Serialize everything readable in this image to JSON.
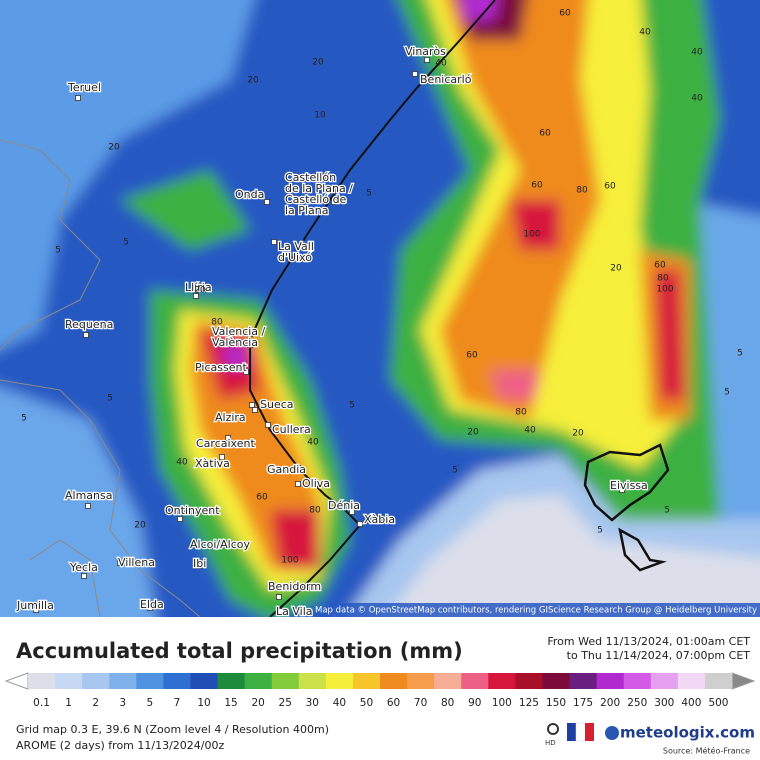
{
  "header": {
    "title": "Accumulated total precipitation (mm)",
    "from": "From Wed 11/13/2024, 01:00am CET",
    "to": "to Thu 11/14/2024, 07:00pm CET"
  },
  "map": {
    "attribution": "Map data © OpenStreetMap contributors, rendering GIScience Research Group @ Heidelberg University",
    "cities": [
      [
        "Teruel"
      ],
      [
        "Vinaròs"
      ],
      [
        "Benicarló"
      ],
      [
        "Onda"
      ],
      [
        "Castellón",
        "de la Plana /",
        "Castelló de",
        "la Plana"
      ],
      [
        "La Vall",
        "d'Uixó"
      ],
      [
        "Llíria"
      ],
      [
        "Requena"
      ],
      [
        "Valencia /",
        "València"
      ],
      [
        "Picassent"
      ],
      [
        "Alzira"
      ],
      [
        "Sueca"
      ],
      [
        "Cullera"
      ],
      [
        "Carcaixent"
      ],
      [
        "Xàtiva"
      ],
      [
        "Gandia"
      ],
      [
        "Oliva"
      ],
      [
        "Almansa"
      ],
      [
        "Ontinyent"
      ],
      [
        "Dénia"
      ],
      [
        "Xàbia"
      ],
      [
        "Alcoi/Alcoy"
      ],
      [
        "Ibi"
      ],
      [
        "Villena"
      ],
      [
        "Yecla"
      ],
      [
        "Benidorm"
      ],
      [
        "La Vila"
      ],
      [
        "Jumilla"
      ],
      [
        "Elda"
      ],
      [
        "Eivissa"
      ]
    ],
    "contour_labels": [
      "20",
      "40",
      "20",
      "60",
      "40",
      "40",
      "40",
      "60",
      "60",
      "80",
      "60",
      "100",
      "20",
      "5",
      "5",
      "20",
      "60",
      "80",
      "100",
      "60",
      "80",
      "40",
      "20",
      "20",
      "5",
      "5",
      "5",
      "5",
      "5",
      "5",
      "40",
      "60",
      "80",
      "100",
      "40",
      "5",
      "5",
      "20",
      "80",
      "20",
      "10",
      "5"
    ]
  },
  "legend": {
    "values": [
      0.1,
      1,
      2,
      3,
      5,
      7,
      10,
      15,
      20,
      25,
      30,
      40,
      50,
      60,
      70,
      80,
      90,
      100,
      125,
      150,
      175,
      200,
      250,
      300,
      400,
      500
    ],
    "colors": [
      "#dcdfea",
      "#c6d8f2",
      "#a8c7ef",
      "#7eb1ea",
      "#4f93e0",
      "#2e6fd1",
      "#1f4fb5",
      "#1d8a3c",
      "#3cb043",
      "#82cc3a",
      "#cbe14a",
      "#f6ef3a",
      "#f5c52a",
      "#ef8a1e",
      "#f59d4a",
      "#f6ad96",
      "#ee5f86",
      "#d7163e",
      "#a8102a",
      "#7c0a3a",
      "#6a1e80",
      "#b02ad0",
      "#d25ae4",
      "#e6a0f0",
      "#f3d8f6",
      "#cfcfcf"
    ]
  },
  "footer": {
    "grid": "Grid map 0.3 E, 39.6 N (Zoom level 4 / Resolution 400m)",
    "model": "AROME (2 days) from 11/13/2024/00z",
    "hd": "HD",
    "brand": "meteologix.com",
    "source": "Source: Météo-France"
  }
}
